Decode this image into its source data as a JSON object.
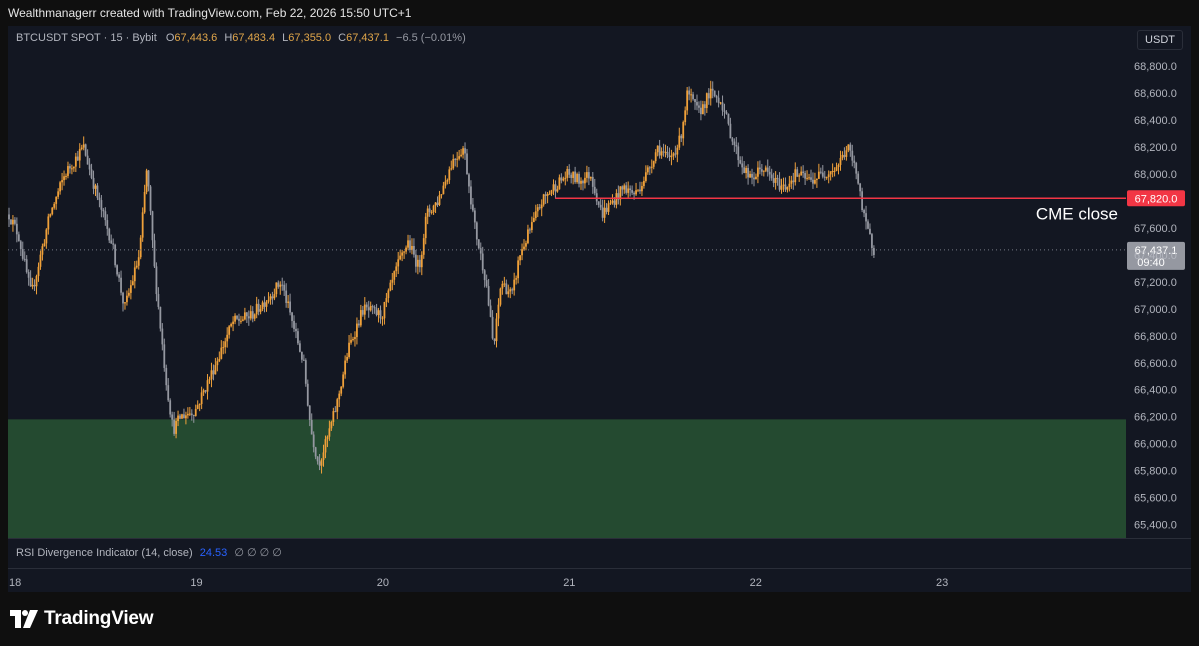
{
  "header": {
    "attribution": "Wealthmanagerr created with TradingView.com, Feb 22, 2026 15:50 UTC+1"
  },
  "legend": {
    "symbol": "BTCUSDT SPOT · 15 · Bybit",
    "open_label": "O",
    "open": "67,443.6",
    "high_label": "H",
    "high": "67,483.4",
    "low_label": "L",
    "low": "67,355.0",
    "close_label": "C",
    "close": "67,437.1",
    "change": "−6.5 (−0.01%)"
  },
  "currency_button": "USDT",
  "indicator": {
    "name": "RSI Divergence Indicator (14, close)",
    "value": "24.53",
    "symbols": "∅ ∅ ∅ ∅"
  },
  "brand": {
    "name": "TradingView"
  },
  "colors": {
    "background": "#131722",
    "candle": "#f0a13a",
    "candle_bear": "#9598a1",
    "cme_line": "#f23645",
    "zone": "#244a30",
    "last_price_label": "#9598a1"
  },
  "chart_data": {
    "type": "candlestick",
    "symbol": "BTCUSDT",
    "interval": "15",
    "ylim": [
      65300,
      68920
    ],
    "y_ticks": [
      68800,
      68600,
      68400,
      68200,
      68000,
      67800,
      67600,
      67400,
      67200,
      67000,
      66800,
      66600,
      66400,
      66200,
      66000,
      65800,
      65600,
      65400
    ],
    "y_tick_labels": [
      "68,800.0",
      "68,600.0",
      "68,400.0",
      "68,200.0",
      "68,000.0",
      "67,800.0",
      "67,600.0",
      "67,400.0",
      "67,200.0",
      "67,000.0",
      "66,800.0",
      "66,600.0",
      "66,400.0",
      "66,200.0",
      "66,000.0",
      "65,800.0",
      "65,600.0",
      "65,400.0"
    ],
    "x_ticks": [
      "18",
      "19",
      "20",
      "21",
      "22",
      "23"
    ],
    "x_tick_days": [
      0,
      1,
      2,
      3,
      4,
      5
    ],
    "price_path": [
      {
        "day": 0.0,
        "price": 67700
      },
      {
        "day": 0.05,
        "price": 67550
      },
      {
        "day": 0.12,
        "price": 67100
      },
      {
        "day": 0.22,
        "price": 67700
      },
      {
        "day": 0.3,
        "price": 68000
      },
      {
        "day": 0.4,
        "price": 68200
      },
      {
        "day": 0.48,
        "price": 67800
      },
      {
        "day": 0.55,
        "price": 67500
      },
      {
        "day": 0.62,
        "price": 67000
      },
      {
        "day": 0.7,
        "price": 67400
      },
      {
        "day": 0.74,
        "price": 68050
      },
      {
        "day": 0.78,
        "price": 67300
      },
      {
        "day": 0.84,
        "price": 66500
      },
      {
        "day": 0.88,
        "price": 66100
      },
      {
        "day": 0.92,
        "price": 66200
      },
      {
        "day": 1.0,
        "price": 66250
      },
      {
        "day": 1.08,
        "price": 66500
      },
      {
        "day": 1.2,
        "price": 66900
      },
      {
        "day": 1.3,
        "price": 66950
      },
      {
        "day": 1.4,
        "price": 67100
      },
      {
        "day": 1.46,
        "price": 67200
      },
      {
        "day": 1.52,
        "price": 66900
      },
      {
        "day": 1.58,
        "price": 66600
      },
      {
        "day": 1.62,
        "price": 66100
      },
      {
        "day": 1.66,
        "price": 65850
      },
      {
        "day": 1.7,
        "price": 66000
      },
      {
        "day": 1.76,
        "price": 66300
      },
      {
        "day": 1.82,
        "price": 66700
      },
      {
        "day": 1.9,
        "price": 67000
      },
      {
        "day": 2.0,
        "price": 66950
      },
      {
        "day": 2.08,
        "price": 67300
      },
      {
        "day": 2.14,
        "price": 67500
      },
      {
        "day": 2.2,
        "price": 67300
      },
      {
        "day": 2.24,
        "price": 67700
      },
      {
        "day": 2.3,
        "price": 67800
      },
      {
        "day": 2.38,
        "price": 68100
      },
      {
        "day": 2.44,
        "price": 68200
      },
      {
        "day": 2.5,
        "price": 67600
      },
      {
        "day": 2.56,
        "price": 67200
      },
      {
        "day": 2.6,
        "price": 66700
      },
      {
        "day": 2.64,
        "price": 67200
      },
      {
        "day": 2.7,
        "price": 67100
      },
      {
        "day": 2.74,
        "price": 67400
      },
      {
        "day": 2.8,
        "price": 67600
      },
      {
        "day": 2.86,
        "price": 67800
      },
      {
        "day": 2.92,
        "price": 67900
      },
      {
        "day": 3.0,
        "price": 68000
      },
      {
        "day": 3.06,
        "price": 67950
      },
      {
        "day": 3.12,
        "price": 68000
      },
      {
        "day": 3.18,
        "price": 67700
      },
      {
        "day": 3.24,
        "price": 67800
      },
      {
        "day": 3.3,
        "price": 67900
      },
      {
        "day": 3.36,
        "price": 67850
      },
      {
        "day": 3.42,
        "price": 68000
      },
      {
        "day": 3.48,
        "price": 68200
      },
      {
        "day": 3.54,
        "price": 68100
      },
      {
        "day": 3.6,
        "price": 68250
      },
      {
        "day": 3.64,
        "price": 68600
      },
      {
        "day": 3.7,
        "price": 68450
      },
      {
        "day": 3.76,
        "price": 68600
      },
      {
        "day": 3.82,
        "price": 68550
      },
      {
        "day": 3.86,
        "price": 68350
      },
      {
        "day": 3.92,
        "price": 68100
      },
      {
        "day": 3.98,
        "price": 67950
      },
      {
        "day": 4.04,
        "price": 68050
      },
      {
        "day": 4.1,
        "price": 67950
      },
      {
        "day": 4.16,
        "price": 67900
      },
      {
        "day": 4.22,
        "price": 68000
      },
      {
        "day": 4.3,
        "price": 67950
      },
      {
        "day": 4.36,
        "price": 68000
      },
      {
        "day": 4.44,
        "price": 68050
      },
      {
        "day": 4.5,
        "price": 68200
      },
      {
        "day": 4.56,
        "price": 67950
      },
      {
        "day": 4.58,
        "price": 67700
      },
      {
        "day": 4.61,
        "price": 67560
      },
      {
        "day": 4.64,
        "price": 67437.1
      }
    ],
    "horizontal_lines": [
      {
        "price": 67820,
        "label": "67,820.0",
        "annotation": "CME close"
      }
    ],
    "last_price": {
      "price": 67437.1,
      "label": "67,437.1",
      "countdown": "09:40"
    },
    "zones": [
      {
        "from": 65300,
        "to": 66180
      }
    ],
    "grid": false
  }
}
